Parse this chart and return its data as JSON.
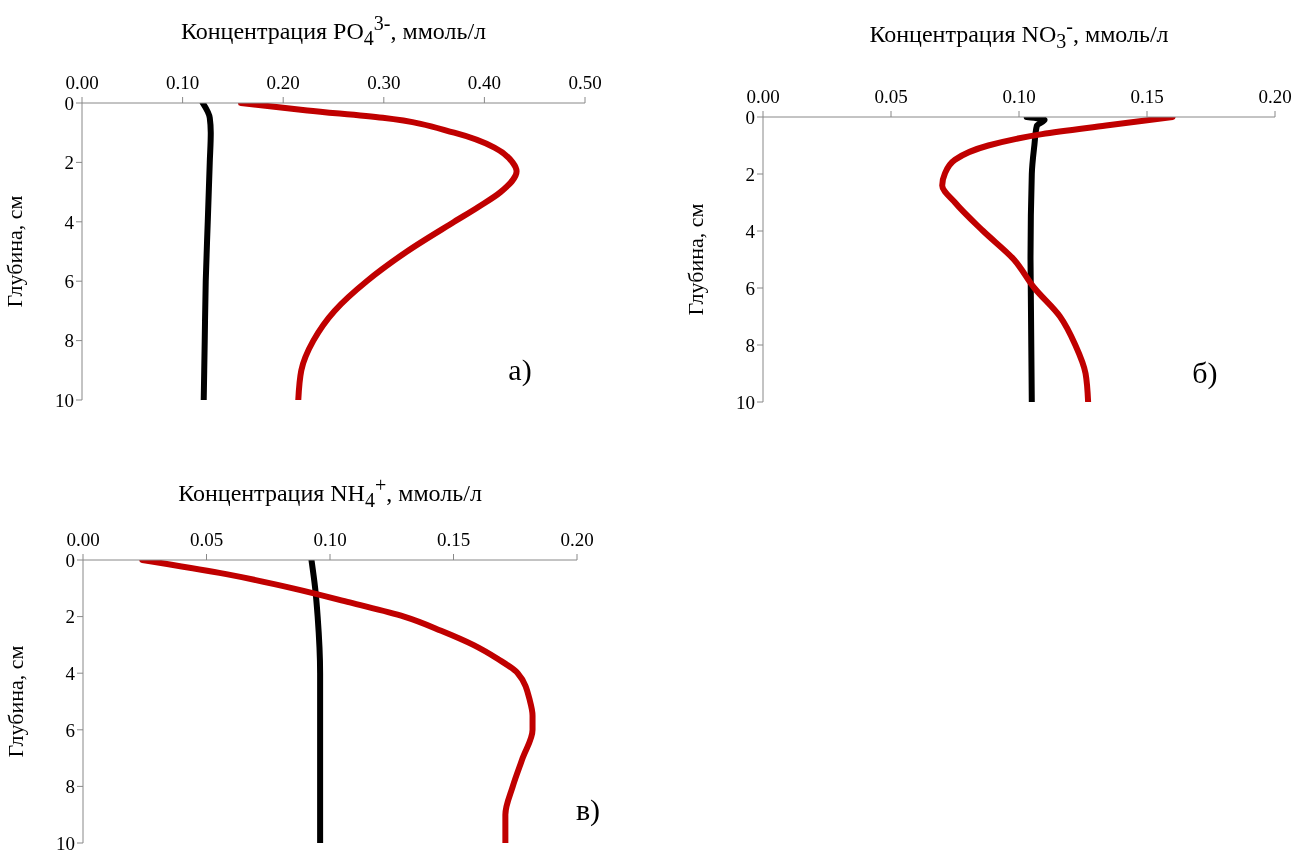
{
  "chart_data": [
    {
      "type": "line",
      "xlabel": "Концентрация PO$_{4}$$^{3-}$, ммоль/л",
      "ylabel": "Глубина, см",
      "xlim": [
        0,
        0.5
      ],
      "xticks": [
        {
          "value": 0,
          "label": "0.00"
        },
        {
          "value": 0.1,
          "label": "0.10"
        },
        {
          "value": 0.2,
          "label": "0.20"
        },
        {
          "value": 0.3,
          "label": "0.30"
        },
        {
          "value": 0.4,
          "label": "0.40"
        },
        {
          "value": 0.5,
          "label": "0.50"
        }
      ],
      "ylim": [
        10,
        0
      ],
      "yticks": [
        0,
        2,
        4,
        6,
        8,
        10
      ],
      "grid": false,
      "legend": false,
      "marker": "none",
      "line_style": "solid",
      "annotations": [
        "а)"
      ],
      "series": [
        {
          "color": "#000000",
          "x": [
            0.12,
            0.127,
            0.128,
            0.127,
            0.125,
            0.123,
            0.122,
            0.121
          ],
          "values": [
            0,
            0.5,
            1,
            2,
            4,
            6,
            8,
            10
          ]
        },
        {
          "color": "#c00000",
          "x": [
            0.158,
            0.224,
            0.299,
            0.37,
            0.41,
            0.428,
            0.432,
            0.416,
            0.394,
            0.37,
            0.323,
            0.283,
            0.251,
            0.23,
            0.218,
            0.215
          ],
          "values": [
            0,
            0.25,
            0.5,
            1,
            1.5,
            2,
            2.3,
            3,
            3.5,
            4,
            5,
            6,
            7,
            8,
            9,
            10
          ]
        }
      ]
    },
    {
      "type": "line",
      "xlabel": "Концентрация NO$_{3}$$^{-}$, ммоль/л",
      "ylabel": "Глубина, см",
      "xlim": [
        0,
        0.2
      ],
      "xticks": [
        {
          "value": 0,
          "label": "0.00"
        },
        {
          "value": 0.05,
          "label": "0.05"
        },
        {
          "value": 0.1,
          "label": "0.10"
        },
        {
          "value": 0.15,
          "label": "0.15"
        },
        {
          "value": 0.2,
          "label": "0.20"
        }
      ],
      "ylim": [
        10,
        0
      ],
      "yticks": [
        0,
        2,
        4,
        6,
        8,
        10
      ],
      "grid": false,
      "legend": false,
      "marker": "none",
      "line_style": "solid",
      "annotations": [
        "б)"
      ],
      "series": [
        {
          "color": "#000000",
          "x": [
            0.103,
            0.11,
            0.107,
            0.106,
            0.105,
            0.1045,
            0.105
          ],
          "values": [
            0,
            0.1,
            0.3,
            1,
            2,
            5,
            10
          ]
        },
        {
          "color": "#c00000",
          "x": [
            0.16,
            0.134,
            0.109,
            0.088,
            0.075,
            0.071,
            0.07,
            0.075,
            0.086,
            0.098,
            0.106,
            0.116,
            0.122,
            0.126,
            0.127
          ],
          "values": [
            0,
            0.3,
            0.6,
            1,
            1.5,
            2,
            2.4,
            3,
            4,
            5,
            6,
            7,
            8,
            9,
            10
          ]
        }
      ]
    },
    {
      "type": "line",
      "xlabel": "Концентрация NH$_{4}$$^{+}$, ммоль/л",
      "ylabel": "Глубина, см",
      "xlim": [
        0,
        0.2
      ],
      "xticks": [
        {
          "value": 0,
          "label": "0.00"
        },
        {
          "value": 0.05,
          "label": "0.05"
        },
        {
          "value": 0.1,
          "label": "0.10"
        },
        {
          "value": 0.15,
          "label": "0.15"
        },
        {
          "value": 0.2,
          "label": "0.20"
        }
      ],
      "ylim": [
        10,
        0
      ],
      "yticks": [
        0,
        2,
        4,
        6,
        8,
        10
      ],
      "grid": false,
      "legend": false,
      "marker": "none",
      "line_style": "solid",
      "annotations": [
        "в)"
      ],
      "series": [
        {
          "color": "#000000",
          "x": [
            0.0925,
            0.094,
            0.095,
            0.096,
            0.096,
            0.096
          ],
          "values": [
            0,
            1,
            2,
            4,
            6,
            10
          ]
        },
        {
          "color": "#c00000",
          "x": [
            0.024,
            0.058,
            0.085,
            0.108,
            0.13,
            0.145,
            0.158,
            0.168,
            0.176,
            0.181,
            0.182,
            0.182,
            0.178,
            0.174,
            0.171,
            0.171
          ],
          "values": [
            0,
            0.5,
            1,
            1.5,
            2,
            2.5,
            3,
            3.5,
            4,
            5,
            5.5,
            6,
            7,
            8,
            9,
            10
          ]
        }
      ]
    }
  ]
}
